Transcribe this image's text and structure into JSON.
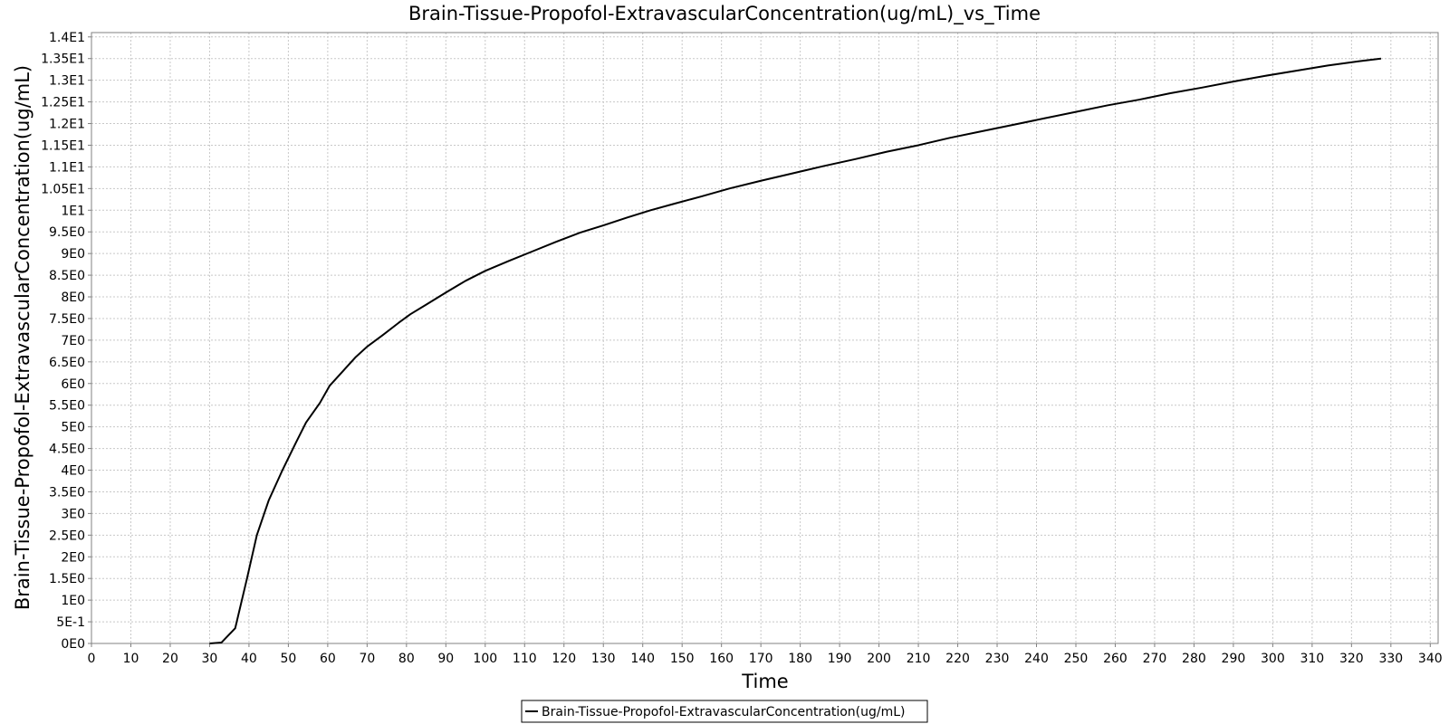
{
  "chart_data": {
    "type": "line",
    "title": "Brain-Tissue-Propofol-ExtravascularConcentration(ug/mL)_vs_Time",
    "xlabel": "Time",
    "ylabel": "Brain-Tissue-Propofol-ExtravascularConcentration(ug/mL)",
    "xlim": [
      0,
      342
    ],
    "ylim": [
      0,
      14.1
    ],
    "grid": true,
    "legend_position": "bottom-center",
    "x_ticks": [
      0,
      10,
      20,
      30,
      40,
      50,
      60,
      70,
      80,
      90,
      100,
      110,
      120,
      130,
      140,
      150,
      160,
      170,
      180,
      190,
      200,
      210,
      220,
      230,
      240,
      250,
      260,
      270,
      280,
      290,
      300,
      310,
      320,
      330,
      340
    ],
    "x_tick_labels": [
      "0",
      "10",
      "20",
      "30",
      "40",
      "50",
      "60",
      "70",
      "80",
      "90",
      "100",
      "110",
      "120",
      "130",
      "140",
      "150",
      "160",
      "170",
      "180",
      "190",
      "200",
      "210",
      "220",
      "230",
      "240",
      "250",
      "260",
      "270",
      "280",
      "290",
      "300",
      "310",
      "320",
      "330",
      "340"
    ],
    "y_ticks": [
      0,
      0.5,
      1,
      1.5,
      2,
      2.5,
      3,
      3.5,
      4,
      4.5,
      5,
      5.5,
      6,
      6.5,
      7,
      7.5,
      8,
      8.5,
      9,
      9.5,
      10,
      10.5,
      11,
      11.5,
      12,
      12.5,
      13,
      13.5,
      14
    ],
    "y_tick_labels": [
      "0E0",
      "5E-1",
      "1E0",
      "1.5E0",
      "2E0",
      "2.5E0",
      "3E0",
      "3.5E0",
      "4E0",
      "4.5E0",
      "5E0",
      "5.5E0",
      "6E0",
      "6.5E0",
      "7E0",
      "7.5E0",
      "8E0",
      "8.5E0",
      "9E0",
      "9.5E0",
      "1E1",
      "1.05E1",
      "1.1E1",
      "1.15E1",
      "1.2E1",
      "1.25E1",
      "1.3E1",
      "1.35E1",
      "1.4E1"
    ],
    "series": [
      {
        "name": "Brain-Tissue-Propofol-ExtravascularConcentration(ug/mL)",
        "color": "#000000",
        "x": [
          30,
          33,
          36.5,
          39.5,
          42,
          45,
          48.5,
          52,
          54.5,
          58,
          60.5,
          64,
          67,
          70,
          74,
          78,
          81,
          85,
          90,
          95,
          100,
          106,
          112,
          118,
          124,
          130,
          136,
          142,
          148,
          155,
          162,
          170,
          178,
          186,
          194,
          202,
          210,
          218,
          226,
          234,
          242,
          250,
          258,
          266,
          274,
          282,
          290,
          298,
          306,
          314,
          322,
          327.5
        ],
        "y": [
          0.0,
          0.02,
          0.35,
          1.5,
          2.5,
          3.3,
          4.0,
          4.65,
          5.1,
          5.55,
          5.95,
          6.3,
          6.6,
          6.85,
          7.12,
          7.4,
          7.6,
          7.82,
          8.1,
          8.37,
          8.6,
          8.83,
          9.05,
          9.27,
          9.48,
          9.65,
          9.83,
          10.0,
          10.15,
          10.32,
          10.5,
          10.68,
          10.85,
          11.02,
          11.18,
          11.35,
          11.5,
          11.67,
          11.82,
          11.97,
          12.12,
          12.27,
          12.42,
          12.55,
          12.7,
          12.83,
          12.97,
          13.1,
          13.22,
          13.34,
          13.44,
          13.5
        ]
      }
    ]
  }
}
